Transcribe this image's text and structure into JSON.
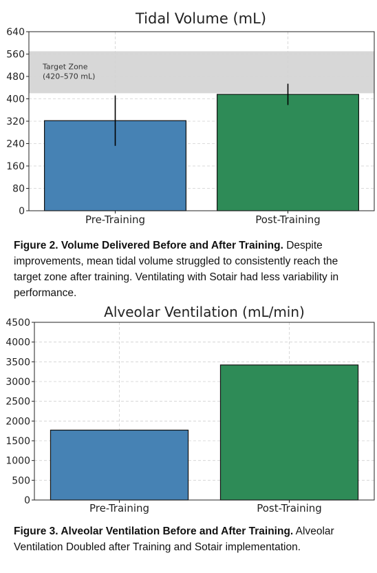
{
  "chart_data": [
    {
      "type": "bar",
      "title": "Tidal Volume (mL)",
      "categories": [
        "Pre-Training",
        "Post-Training"
      ],
      "values": [
        322,
        416
      ],
      "error": [
        90,
        38
      ],
      "ylim": [
        0,
        640
      ],
      "yticks": [
        0,
        80,
        160,
        240,
        320,
        400,
        480,
        560,
        640
      ],
      "colors": [
        "#4682b4",
        "#2e8b57"
      ],
      "grid": true,
      "band": {
        "label_line1": "Target Zone",
        "label_line2": "(420–570 mL)",
        "from": 420,
        "to": 570,
        "color": "#d3d3d3"
      }
    },
    {
      "type": "bar",
      "title": "Alveolar Ventilation (mL/min)",
      "categories": [
        "Pre-Training",
        "Post-Training"
      ],
      "values": [
        1770,
        3420
      ],
      "ylim": [
        0,
        4500
      ],
      "yticks": [
        0,
        500,
        1000,
        1500,
        2000,
        2500,
        3000,
        3500,
        4000,
        4500
      ],
      "colors": [
        "#4682b4",
        "#2e8b57"
      ],
      "grid": true
    }
  ],
  "captions": [
    {
      "bold": "Figure 2. Volume Delivered Before and After Training.",
      "text": " Despite improvements, mean tidal volume struggled to consistently reach the target zone after training. Ventilating with Sotair had less variability in performance."
    },
    {
      "bold": "Figure 3. Alveolar Ventilation Before and After Training.",
      "text": " Alveolar Ventilation Doubled after Training and Sotair implementation."
    }
  ]
}
